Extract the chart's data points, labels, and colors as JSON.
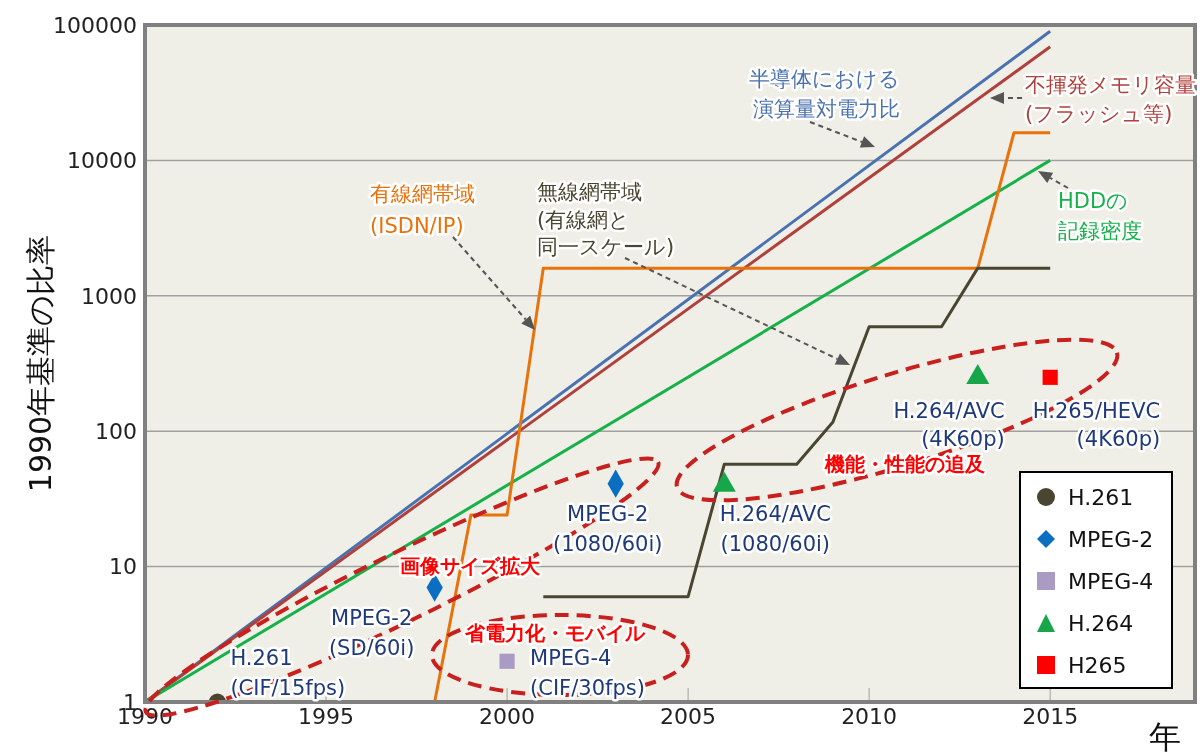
{
  "chart_data": {
    "type": "line",
    "ylabel": "1990年基準の比率",
    "xlabel": "年",
    "xlim": [
      1990,
      2019
    ],
    "xticks": [
      1990,
      1995,
      2000,
      2005,
      2010,
      2015
    ],
    "ylim": [
      1,
      100000
    ],
    "yticks": [
      1,
      10,
      100,
      1000,
      10000,
      100000
    ],
    "log": "y",
    "grid": "y",
    "legend": "bottom right",
    "line_style": "solid",
    "series": [
      {
        "name": "半導体における演算量対電力比",
        "color": "#4a72b0",
        "marker": "none",
        "x": [
          1990,
          2015
        ],
        "values": [
          1,
          90000
        ]
      },
      {
        "name": "不揮発メモリ容量(フラッシュ等)",
        "color": "#b0403c",
        "marker": "none",
        "x": [
          1990,
          2015
        ],
        "values": [
          1,
          69000
        ]
      },
      {
        "name": "HDDの記録密度",
        "color": "#17b14a",
        "marker": "none",
        "x": [
          1990,
          2015
        ],
        "values": [
          1,
          10000
        ]
      },
      {
        "name": "有線網帯域(ISDN/IP)",
        "color": "#e8720c",
        "marker": "none",
        "x": [
          1990,
          1998,
          1999,
          2000,
          2001,
          2013,
          2014,
          2015
        ],
        "values": [
          1,
          1,
          24,
          24,
          1600,
          1600,
          16000,
          16000
        ]
      },
      {
        "name": "無線網帯域(有線網と同一スケール)",
        "color": "#4a4530",
        "marker": "none",
        "x": [
          2001,
          2005,
          2006,
          2008,
          2009,
          2010,
          2012,
          2013,
          2015
        ],
        "values": [
          6,
          6,
          57,
          57,
          117,
          590,
          590,
          1600,
          1600
        ]
      },
      {
        "name": "H.261",
        "type": "scatter",
        "color": "#4a4530",
        "marker": "circle",
        "x": [
          1992
        ],
        "values": [
          1
        ]
      },
      {
        "name": "MPEG-2",
        "type": "scatter",
        "color": "#0a6fc2",
        "marker": "diamond",
        "x": [
          1998,
          2003
        ],
        "values": [
          7,
          41
        ]
      },
      {
        "name": "MPEG-4",
        "type": "scatter",
        "color": "#a99bc3",
        "marker": "square",
        "x": [
          2000
        ],
        "values": [
          2
        ]
      },
      {
        "name": "H.264",
        "type": "scatter",
        "color": "#17a74a",
        "marker": "triangle",
        "x": [
          2006,
          2013
        ],
        "values": [
          40,
          250
        ]
      },
      {
        "name": "H265",
        "type": "scatter",
        "color": "#ff0000",
        "marker": "square",
        "x": [
          2015
        ],
        "values": [
          250
        ]
      }
    ],
    "annotations": [
      {
        "text": "H.261\n(CIF/15fps)",
        "x": 1992,
        "y": 1
      },
      {
        "text": "MPEG-2\n(SD/60i)",
        "x": 1998,
        "y": 7
      },
      {
        "text": "MPEG-2\n(1080/60i)",
        "x": 2003,
        "y": 41
      },
      {
        "text": "MPEG-4\n(CIF/30fps)",
        "x": 2000,
        "y": 2
      },
      {
        "text": "H.264/AVC\n(1080/60i)",
        "x": 2006,
        "y": 40
      },
      {
        "text": "H.264/AVC\n(4K60p)",
        "x": 2013,
        "y": 250
      },
      {
        "text": "H.265/HEVC\n(4K60p)",
        "x": 2015,
        "y": 250
      },
      "画像サイズ拡大",
      "省電力化・モバイル",
      "機能・性能の追及"
    ]
  }
}
